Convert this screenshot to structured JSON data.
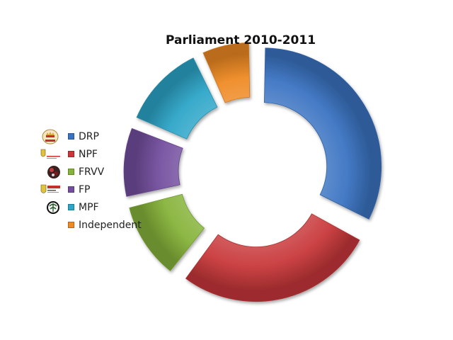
{
  "chart_data": {
    "type": "donut",
    "title": "Parliament 2010-2011",
    "categories": [
      "DRP",
      "NPF",
      "FRVV",
      "FP",
      "MPF",
      "Independent"
    ],
    "values": [
      33,
      28,
      11,
      10,
      12,
      7
    ],
    "colors": [
      "#3a73c2",
      "#c8383a",
      "#86b33a",
      "#744f9f",
      "#2ea6c8",
      "#ef8a24"
    ],
    "legend_position": "left",
    "exploded": true
  },
  "legend": {
    "items": [
      {
        "label": "DRP",
        "logo": "drp-logo-icon"
      },
      {
        "label": "NPF",
        "logo": "npf-logo-icon"
      },
      {
        "label": "FRVV",
        "logo": "frvv-logo-icon"
      },
      {
        "label": "FP",
        "logo": "fp-logo-icon"
      },
      {
        "label": "MPF",
        "logo": "mpf-logo-icon"
      },
      {
        "label": "Independent",
        "logo": ""
      }
    ]
  }
}
